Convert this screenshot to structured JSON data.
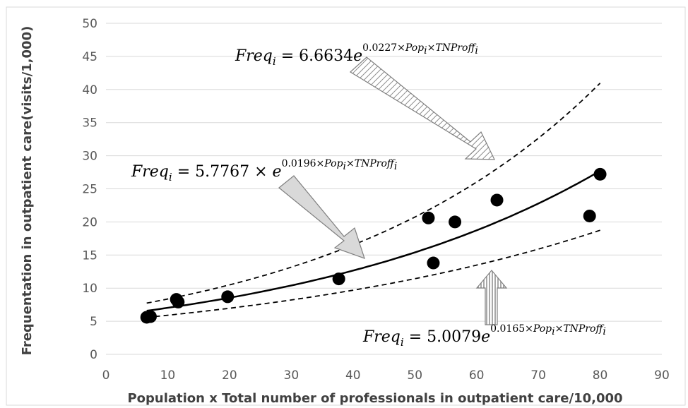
{
  "chart_data": {
    "type": "scatter",
    "title": "",
    "xlabel": "Population x Total number of professionals in outpatient care/10,000",
    "ylabel": "Frequentation in outpatient care(visits/1,000)",
    "xlim": [
      0,
      90
    ],
    "ylim": [
      0,
      50
    ],
    "x_ticks": [
      0,
      10,
      20,
      30,
      40,
      50,
      60,
      70,
      80,
      90
    ],
    "y_ticks": [
      0,
      5,
      10,
      15,
      20,
      25,
      30,
      35,
      40,
      45,
      50
    ],
    "grid": "horizontal",
    "points": [
      {
        "x": 6.6,
        "y": 5.6
      },
      {
        "x": 7.2,
        "y": 5.7
      },
      {
        "x": 11.4,
        "y": 8.3
      },
      {
        "x": 11.7,
        "y": 7.9
      },
      {
        "x": 19.7,
        "y": 8.7
      },
      {
        "x": 37.7,
        "y": 11.4
      },
      {
        "x": 52.2,
        "y": 20.6
      },
      {
        "x": 53.0,
        "y": 13.8
      },
      {
        "x": 56.5,
        "y": 20.0
      },
      {
        "x": 63.3,
        "y": 23.3
      },
      {
        "x": 78.3,
        "y": 20.9
      },
      {
        "x": 80.0,
        "y": 27.2
      }
    ],
    "curves": [
      {
        "role": "fit",
        "style": "solid",
        "a": 5.7767,
        "b": 0.0196,
        "x_range": [
          6.6,
          80
        ]
      },
      {
        "role": "upper",
        "style": "dashed",
        "a": 6.6634,
        "b": 0.0227,
        "x_range": [
          6.6,
          80
        ]
      },
      {
        "role": "lower",
        "style": "dashed",
        "a": 5.0079,
        "b": 0.0165,
        "x_range": [
          6.6,
          80
        ]
      }
    ],
    "annotations": [
      {
        "id": "upper",
        "lhs": "Freq",
        "sub": "i",
        "rhs": " = 6.6634",
        "base": "e",
        "exp_a": "0.0227×",
        "pop": "Pop",
        "exp_sub1": "i",
        "mul": "×",
        "tn": "TNProff",
        "exp_sub2": "i"
      },
      {
        "id": "fit",
        "lhs": "Freq",
        "sub": "i",
        "rhs": " = 5.7767 × ",
        "base": "e",
        "exp_a": "0.0196×",
        "pop": "Pop",
        "exp_sub1": "i",
        "mul": "×",
        "tn": "TNProff",
        "exp_sub2": "i"
      },
      {
        "id": "lower",
        "lhs": "Freq",
        "sub": "i",
        "rhs": " = 5.0079",
        "base": "e",
        "exp_a": "0.0165×",
        "pop": "Pop",
        "exp_sub1": "i",
        "mul": "×",
        "tn": "TNProff",
        "exp_sub2": "i"
      }
    ],
    "colors": {
      "points": "#000000",
      "grid": "#d9d9d9",
      "border": "#d9d9d9",
      "arrow_fill": "#d9d9d9",
      "arrow_stroke": "#7f7f7f"
    }
  }
}
